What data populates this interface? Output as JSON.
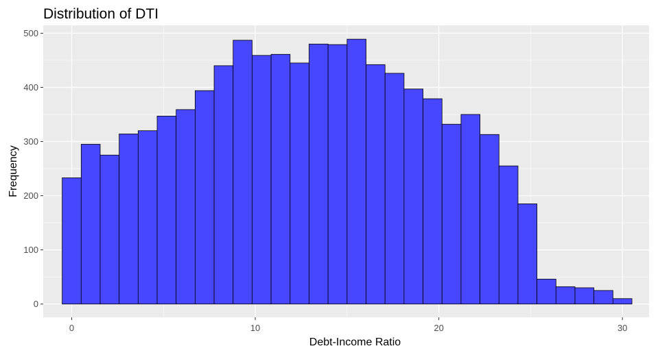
{
  "chart_data": {
    "type": "bar",
    "title": "Distribution of DTI",
    "xlabel": "Debt-Income Ratio",
    "ylabel": "Frequency",
    "xlim": [
      -1.55,
      31.45
    ],
    "ylim": [
      -24.5,
      514.5
    ],
    "x_ticks": [
      0,
      10,
      20,
      30
    ],
    "x_minor_ticks": [
      5,
      15,
      25
    ],
    "y_ticks": [
      0,
      100,
      200,
      300,
      400,
      500
    ],
    "y_minor_ticks": [
      50,
      150,
      250,
      350,
      450
    ],
    "bin_width": 1.0345,
    "bin_start": -0.517,
    "values": [
      233,
      295,
      275,
      314,
      320,
      347,
      359,
      394,
      440,
      487,
      459,
      461,
      445,
      480,
      479,
      489,
      442,
      426,
      397,
      379,
      332,
      350,
      313,
      255,
      185,
      46,
      32,
      30,
      25,
      10
    ],
    "grid": true,
    "colors": {
      "panel": "#ebebeb",
      "grid": "#ffffff",
      "fill": "#4747ff",
      "outline": "#000000"
    }
  }
}
